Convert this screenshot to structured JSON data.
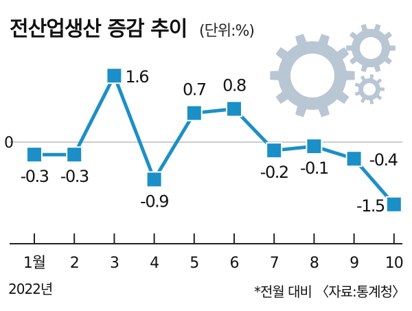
{
  "chart_data": {
    "type": "line",
    "title": "전산업생산 증감 추이",
    "unit_label": "(단위:%)",
    "categories": [
      "1월",
      "2",
      "3",
      "4",
      "5",
      "6",
      "7",
      "8",
      "9",
      "10"
    ],
    "values": [
      -0.3,
      -0.3,
      1.6,
      -0.9,
      0.7,
      0.8,
      -0.2,
      -0.1,
      -0.4,
      -1.5
    ],
    "value_labels": [
      "-0.3",
      "-0.3",
      "1.6",
      "-0.9",
      "0.7",
      "0.8",
      "-0.2",
      "-0.1",
      "-0.4",
      "-1.5"
    ],
    "zero_label": "0",
    "year_label": "2022년",
    "footnote": "*전월 대비 〈자료:통계청〉",
    "ylim": [
      -2.2,
      2.6
    ],
    "colors": {
      "line": "#1b8fc7",
      "marker_fill": "#1b8fc7",
      "marker_stroke": "#ffffff",
      "gears": "#b9c6d4",
      "axis": "#222222",
      "zero_line": "#9a9a9a"
    },
    "decoration": [
      "large-gear-icon",
      "small-gear-icon",
      "tiny-gear-icon"
    ]
  }
}
